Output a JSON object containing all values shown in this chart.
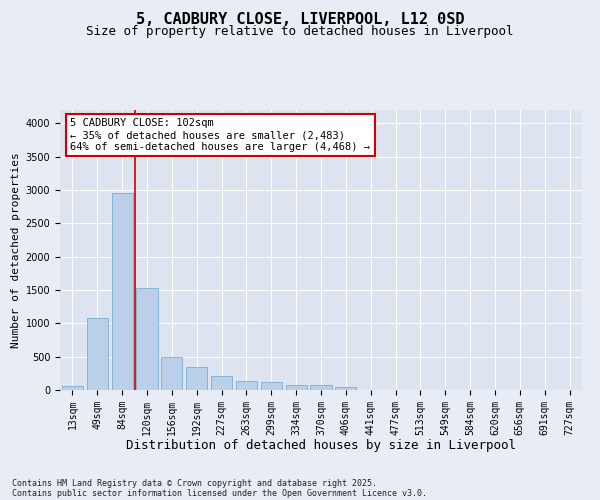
{
  "title": "5, CADBURY CLOSE, LIVERPOOL, L12 0SD",
  "subtitle": "Size of property relative to detached houses in Liverpool",
  "xlabel": "Distribution of detached houses by size in Liverpool",
  "ylabel": "Number of detached properties",
  "categories": [
    "13sqm",
    "49sqm",
    "84sqm",
    "120sqm",
    "156sqm",
    "192sqm",
    "227sqm",
    "263sqm",
    "299sqm",
    "334sqm",
    "370sqm",
    "406sqm",
    "441sqm",
    "477sqm",
    "513sqm",
    "549sqm",
    "584sqm",
    "620sqm",
    "656sqm",
    "691sqm",
    "727sqm"
  ],
  "values": [
    60,
    1080,
    2950,
    1530,
    490,
    340,
    215,
    135,
    120,
    75,
    75,
    40,
    0,
    0,
    0,
    0,
    0,
    0,
    0,
    0,
    0
  ],
  "bar_color": "#bad0e8",
  "bar_edge_color": "#7aafd4",
  "fig_background_color": "#e8ecf5",
  "axes_background_color": "#dde4f0",
  "grid_color": "#ffffff",
  "annotation_text": "5 CADBURY CLOSE: 102sqm\n← 35% of detached houses are smaller (2,483)\n64% of semi-detached houses are larger (4,468) →",
  "annotation_box_facecolor": "#ffffff",
  "annotation_box_edgecolor": "#cc0000",
  "vline_color": "#cc0000",
  "vline_x_idx": 2,
  "ylim": [
    0,
    4200
  ],
  "yticks": [
    0,
    500,
    1000,
    1500,
    2000,
    2500,
    3000,
    3500,
    4000
  ],
  "footnote_line1": "Contains HM Land Registry data © Crown copyright and database right 2025.",
  "footnote_line2": "Contains public sector information licensed under the Open Government Licence v3.0.",
  "title_fontsize": 11,
  "subtitle_fontsize": 9,
  "tick_fontsize": 7,
  "xlabel_fontsize": 9,
  "ylabel_fontsize": 8,
  "annotation_fontsize": 7.5,
  "footnote_fontsize": 6
}
